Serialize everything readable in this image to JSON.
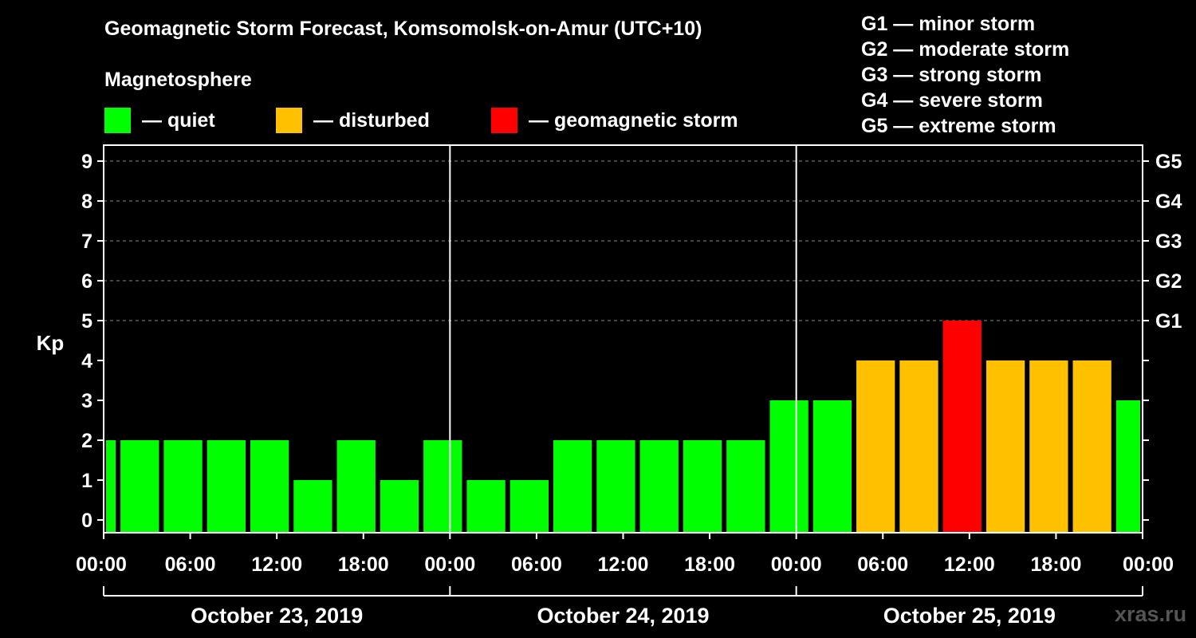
{
  "title": "Geomagnetic Storm Forecast, Komsomolsk-on-Amur (UTC+10)",
  "magnetosphere_label": "Magnetosphere",
  "legend": [
    {
      "text": "— quiet",
      "color": "#00ff00"
    },
    {
      "text": "— disturbed",
      "color": "#ffc000"
    },
    {
      "text": "— geomagnetic storm",
      "color": "#ff0000"
    }
  ],
  "g_legend": [
    "G1 — minor storm",
    "G2 — moderate storm",
    "G3 — strong storm",
    "G4 — severe storm",
    "G5 — extreme storm"
  ],
  "watermark": "xras.ru",
  "colors": {
    "quiet": "#00ff00",
    "disturbed": "#ffc000",
    "storm": "#ff0000"
  },
  "chart_data": {
    "type": "bar",
    "ylabel": "Kp",
    "ylim": [
      0,
      9
    ],
    "yticks": [
      "0",
      "1",
      "2",
      "3",
      "4",
      "5",
      "6",
      "7",
      "8",
      "9"
    ],
    "right_ticks": [
      {
        "kp": 5,
        "label": "G1"
      },
      {
        "kp": 6,
        "label": "G2"
      },
      {
        "kp": 7,
        "label": "G3"
      },
      {
        "kp": 8,
        "label": "G4"
      },
      {
        "kp": 9,
        "label": "G5"
      }
    ],
    "x_tick_labels": [
      "00:00",
      "06:00",
      "12:00",
      "18:00",
      "00:00",
      "06:00",
      "12:00",
      "18:00",
      "00:00",
      "06:00",
      "12:00",
      "18:00",
      "00:00"
    ],
    "x_tick_hours": [
      0,
      6,
      12,
      18,
      24,
      30,
      36,
      42,
      48,
      54,
      60,
      66,
      72
    ],
    "days": [
      "October 23, 2019",
      "October 24, 2019",
      "October 25, 2019"
    ],
    "bars": [
      {
        "start_hour": 0,
        "end_hour": 1,
        "kp": 2,
        "level": "quiet"
      },
      {
        "start_hour": 1,
        "end_hour": 4,
        "kp": 2,
        "level": "quiet"
      },
      {
        "start_hour": 4,
        "end_hour": 7,
        "kp": 2,
        "level": "quiet"
      },
      {
        "start_hour": 7,
        "end_hour": 10,
        "kp": 2,
        "level": "quiet"
      },
      {
        "start_hour": 10,
        "end_hour": 13,
        "kp": 2,
        "level": "quiet"
      },
      {
        "start_hour": 13,
        "end_hour": 16,
        "kp": 1,
        "level": "quiet"
      },
      {
        "start_hour": 16,
        "end_hour": 19,
        "kp": 2,
        "level": "quiet"
      },
      {
        "start_hour": 19,
        "end_hour": 22,
        "kp": 1,
        "level": "quiet"
      },
      {
        "start_hour": 22,
        "end_hour": 25,
        "kp": 2,
        "level": "quiet"
      },
      {
        "start_hour": 25,
        "end_hour": 28,
        "kp": 1,
        "level": "quiet"
      },
      {
        "start_hour": 28,
        "end_hour": 31,
        "kp": 1,
        "level": "quiet"
      },
      {
        "start_hour": 31,
        "end_hour": 34,
        "kp": 2,
        "level": "quiet"
      },
      {
        "start_hour": 34,
        "end_hour": 37,
        "kp": 2,
        "level": "quiet"
      },
      {
        "start_hour": 37,
        "end_hour": 40,
        "kp": 2,
        "level": "quiet"
      },
      {
        "start_hour": 40,
        "end_hour": 43,
        "kp": 2,
        "level": "quiet"
      },
      {
        "start_hour": 43,
        "end_hour": 46,
        "kp": 2,
        "level": "quiet"
      },
      {
        "start_hour": 46,
        "end_hour": 49,
        "kp": 3,
        "level": "quiet"
      },
      {
        "start_hour": 49,
        "end_hour": 52,
        "kp": 3,
        "level": "quiet"
      },
      {
        "start_hour": 52,
        "end_hour": 55,
        "kp": 4,
        "level": "disturbed"
      },
      {
        "start_hour": 55,
        "end_hour": 58,
        "kp": 4,
        "level": "disturbed"
      },
      {
        "start_hour": 58,
        "end_hour": 61,
        "kp": 5,
        "level": "storm"
      },
      {
        "start_hour": 61,
        "end_hour": 64,
        "kp": 4,
        "level": "disturbed"
      },
      {
        "start_hour": 64,
        "end_hour": 67,
        "kp": 4,
        "level": "disturbed"
      },
      {
        "start_hour": 67,
        "end_hour": 70,
        "kp": 4,
        "level": "disturbed"
      },
      {
        "start_hour": 70,
        "end_hour": 72,
        "kp": 3,
        "level": "quiet"
      }
    ]
  }
}
